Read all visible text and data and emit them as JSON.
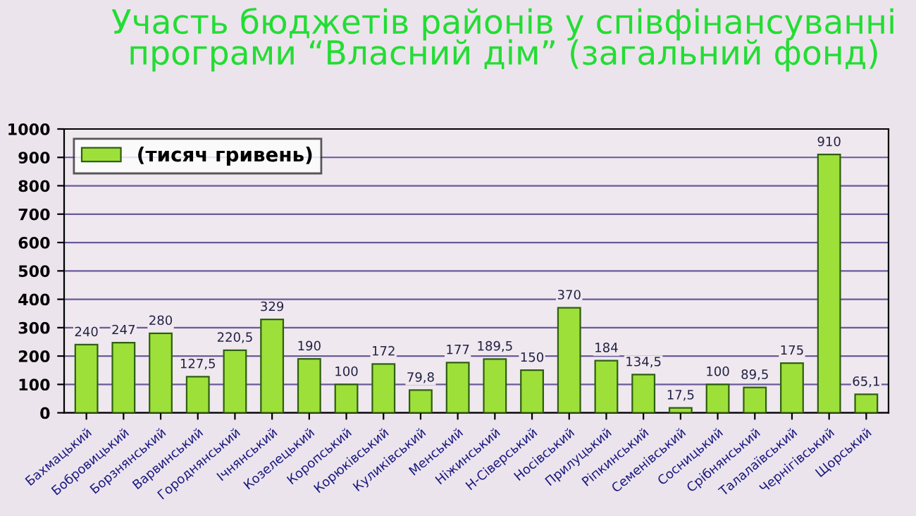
{
  "chart_data": {
    "type": "bar",
    "title": "Участь бюджетів районів у співфінансуванні програми “Власний дім” (загальний фонд)",
    "categories": [
      "Бахмацький",
      "Бобровицький",
      "Борзнянський",
      "Варвинський",
      "Городнянський",
      "Ічнянський",
      "Козелецький",
      "Коропський",
      "Корюківський",
      "Куликівський",
      "Менський",
      "Ніжинський",
      "Н-Сіверський",
      "Носівський",
      "Прилуцький",
      "Ріпкинський",
      "Семенівський",
      "Сосницький",
      "Срібнянський",
      "Талалаївський",
      "Чернігівський",
      "Щорський"
    ],
    "series": [
      {
        "name": "(тисяч гривень)",
        "color": "#9ee03a",
        "values": [
          240,
          247,
          280,
          127.5,
          220.5,
          329,
          190,
          100,
          172,
          79.8,
          177,
          189.5,
          150,
          370,
          184,
          134.5,
          17.5,
          100,
          89.5,
          175,
          910,
          65.1
        ],
        "value_labels": [
          "240",
          "247",
          "280",
          "127,5",
          "220,5",
          "329",
          "190",
          "100",
          "172",
          "79,8",
          "177",
          "189,5",
          "150",
          "370",
          "184",
          "134,5",
          "17,5",
          "100",
          "89,5",
          "175",
          "910",
          "65,1"
        ]
      }
    ],
    "ylim": [
      0,
      1000
    ],
    "yticks": [
      0,
      100,
      200,
      300,
      400,
      500,
      600,
      700,
      800,
      900,
      1000
    ],
    "grid": "y",
    "legend": "top left"
  }
}
